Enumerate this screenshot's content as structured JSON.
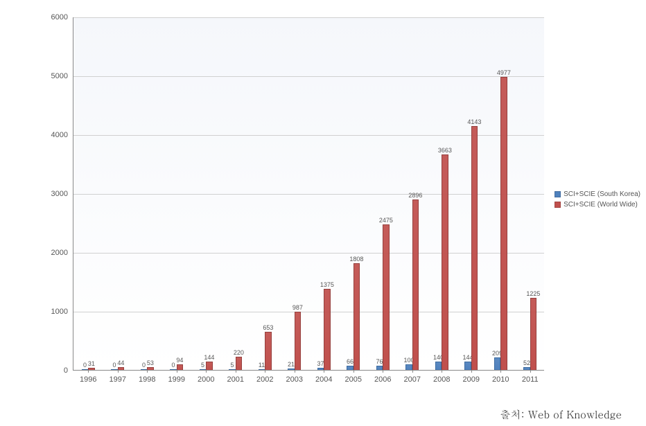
{
  "chart": {
    "type": "bar",
    "background_gradient": [
      "#f5f7fb",
      "#ffffff"
    ],
    "gridline_color": "#d0d0d0",
    "axis_color": "#888888",
    "label_color": "#555555",
    "label_fontsize": 11,
    "bar_value_fontsize": 9,
    "ylim": [
      0,
      6000
    ],
    "ytick_step": 1000,
    "yticks": [
      0,
      1000,
      2000,
      3000,
      4000,
      5000,
      6000
    ],
    "categories": [
      "1996",
      "1997",
      "1998",
      "1999",
      "2000",
      "2001",
      "2002",
      "2003",
      "2004",
      "2005",
      "2006",
      "2007",
      "2008",
      "2009",
      "2010",
      "2011"
    ],
    "series": [
      {
        "name": "SCI+SCIE (South Korea)",
        "color": "#4f81bd",
        "border": "#3a6aa0",
        "values": [
          0,
          0,
          0,
          0,
          5,
          5,
          11,
          21,
          37,
          66,
          76,
          100,
          140,
          144,
          209,
          52
        ]
      },
      {
        "name": "SCI+SCIE (World Wide)",
        "color": "#c0504d",
        "border": "#953f3d",
        "values": [
          31,
          44,
          53,
          94,
          144,
          220,
          653,
          987,
          1375,
          1808,
          2475,
          2896,
          3663,
          4143,
          4977,
          1225
        ]
      }
    ],
    "bar_width_ratio": 0.22,
    "group_gap_ratio": 0.56
  },
  "legend": {
    "items": [
      {
        "label": "SCI+SCIE (South Korea)",
        "color": "#4f81bd"
      },
      {
        "label": "SCI+SCIE (World Wide)",
        "color": "#c0504d"
      }
    ]
  },
  "source": {
    "label": "출처: Web of Knowledge"
  }
}
